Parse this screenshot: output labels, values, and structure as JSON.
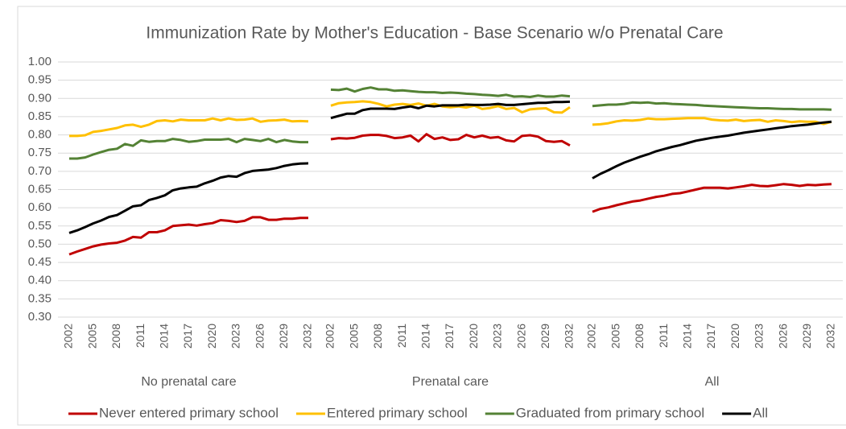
{
  "chart_data": {
    "type": "line",
    "title": "Immunization Rate by Mother's Education - Base Scenario w/o Prenatal Care",
    "panels": [
      "No prenatal care",
      "Prenatal care",
      "All"
    ],
    "categories": [
      2002,
      null,
      null,
      2005,
      null,
      null,
      2008,
      null,
      null,
      2011,
      null,
      null,
      2014,
      null,
      null,
      2017,
      null,
      null,
      2020,
      null,
      null,
      2023,
      null,
      null,
      2026,
      null,
      null,
      2029,
      null,
      null,
      2032
    ],
    "ylim": [
      0.3,
      1.0
    ],
    "yticks": [
      {
        "value": 0.3,
        "label": "0.30"
      },
      {
        "value": 0.35,
        "label": "0.35"
      },
      {
        "value": 0.4,
        "label": "0.40"
      },
      {
        "value": 0.45,
        "label": "0.45"
      },
      {
        "value": 0.5,
        "label": "0.50"
      },
      {
        "value": 0.55,
        "label": "0.55"
      },
      {
        "value": 0.6,
        "label": "0.60"
      },
      {
        "value": 0.65,
        "label": "0.65"
      },
      {
        "value": 0.7,
        "label": "0.70"
      },
      {
        "value": 0.75,
        "label": "0.75"
      },
      {
        "value": 0.8,
        "label": "0.80"
      },
      {
        "value": 0.85,
        "label": "0.85"
      },
      {
        "value": 0.9,
        "label": "0.90"
      },
      {
        "value": 0.95,
        "label": "0.95"
      },
      {
        "value": 1.0,
        "label": "1.00"
      }
    ],
    "grid": true,
    "legend": "bottom",
    "series": [
      {
        "name": "Never entered primary school",
        "color": "#c00000",
        "values": [
          [
            0.472,
            0.48,
            0.487,
            0.494,
            0.499,
            0.502,
            0.504,
            0.51,
            0.52,
            0.518,
            0.533,
            0.533,
            0.538,
            0.55,
            0.552,
            0.554,
            0.551,
            0.555,
            0.558,
            0.566,
            0.564,
            0.561,
            0.564,
            0.574,
            0.574,
            0.567,
            0.567,
            0.57,
            0.57,
            0.572,
            0.572
          ],
          [
            0.788,
            0.791,
            0.79,
            0.792,
            0.798,
            0.8,
            0.8,
            0.797,
            0.791,
            0.793,
            0.798,
            0.782,
            0.802,
            0.789,
            0.793,
            0.786,
            0.788,
            0.8,
            0.793,
            0.798,
            0.792,
            0.794,
            0.785,
            0.782,
            0.797,
            0.799,
            0.795,
            0.783,
            0.781,
            0.783,
            0.771
          ],
          [
            0.589,
            0.597,
            0.601,
            0.607,
            0.612,
            0.617,
            0.62,
            0.625,
            0.63,
            0.633,
            0.638,
            0.64,
            0.645,
            0.65,
            0.655,
            0.655,
            0.655,
            0.653,
            0.656,
            0.659,
            0.663,
            0.66,
            0.659,
            0.662,
            0.665,
            0.663,
            0.66,
            0.663,
            0.662,
            0.664,
            0.665
          ]
        ]
      },
      {
        "name": "Entered primary school",
        "color": "#ffc000",
        "values": [
          [
            0.797,
            0.797,
            0.799,
            0.808,
            0.811,
            0.815,
            0.819,
            0.826,
            0.828,
            0.822,
            0.828,
            0.838,
            0.84,
            0.837,
            0.842,
            0.84,
            0.84,
            0.84,
            0.845,
            0.84,
            0.845,
            0.841,
            0.842,
            0.845,
            0.836,
            0.839,
            0.84,
            0.842,
            0.837,
            0.838,
            0.837
          ],
          [
            0.88,
            0.887,
            0.889,
            0.89,
            0.892,
            0.89,
            0.885,
            0.878,
            0.883,
            0.885,
            0.882,
            0.886,
            0.88,
            0.885,
            0.878,
            0.876,
            0.878,
            0.875,
            0.88,
            0.871,
            0.874,
            0.879,
            0.871,
            0.874,
            0.862,
            0.87,
            0.872,
            0.873,
            0.862,
            0.861,
            0.876
          ],
          [
            0.828,
            0.829,
            0.832,
            0.837,
            0.84,
            0.839,
            0.841,
            0.845,
            0.843,
            0.843,
            0.844,
            0.845,
            0.846,
            0.846,
            0.846,
            0.842,
            0.84,
            0.839,
            0.842,
            0.838,
            0.84,
            0.841,
            0.836,
            0.84,
            0.838,
            0.835,
            0.837,
            0.836,
            0.836,
            0.83,
            0.836
          ]
        ]
      },
      {
        "name": "Graduated from primary school",
        "color": "#548235",
        "values": [
          [
            0.735,
            0.735,
            0.738,
            0.746,
            0.753,
            0.759,
            0.762,
            0.775,
            0.77,
            0.785,
            0.781,
            0.783,
            0.783,
            0.789,
            0.786,
            0.781,
            0.783,
            0.787,
            0.787,
            0.787,
            0.789,
            0.78,
            0.789,
            0.786,
            0.783,
            0.789,
            0.78,
            0.786,
            0.782,
            0.78,
            0.78
          ],
          [
            0.924,
            0.923,
            0.927,
            0.919,
            0.926,
            0.93,
            0.925,
            0.925,
            0.921,
            0.922,
            0.92,
            0.918,
            0.917,
            0.917,
            0.915,
            0.916,
            0.915,
            0.913,
            0.912,
            0.91,
            0.909,
            0.907,
            0.91,
            0.905,
            0.906,
            0.904,
            0.908,
            0.905,
            0.905,
            0.908,
            0.906
          ],
          [
            0.879,
            0.881,
            0.883,
            0.883,
            0.885,
            0.889,
            0.888,
            0.889,
            0.886,
            0.887,
            0.885,
            0.884,
            0.883,
            0.882,
            0.88,
            0.879,
            0.878,
            0.877,
            0.876,
            0.875,
            0.874,
            0.873,
            0.873,
            0.872,
            0.871,
            0.871,
            0.87,
            0.87,
            0.87,
            0.87,
            0.869
          ]
        ]
      },
      {
        "name": "All",
        "color": "#000000",
        "values": [
          [
            0.531,
            0.538,
            0.547,
            0.557,
            0.565,
            0.575,
            0.58,
            0.592,
            0.604,
            0.607,
            0.621,
            0.627,
            0.634,
            0.648,
            0.653,
            0.656,
            0.658,
            0.667,
            0.674,
            0.683,
            0.687,
            0.685,
            0.695,
            0.701,
            0.703,
            0.705,
            0.709,
            0.715,
            0.719,
            0.721,
            0.722
          ],
          [
            0.846,
            0.852,
            0.858,
            0.858,
            0.868,
            0.872,
            0.872,
            0.872,
            0.871,
            0.875,
            0.878,
            0.873,
            0.88,
            0.878,
            0.881,
            0.881,
            0.881,
            0.883,
            0.882,
            0.882,
            0.883,
            0.885,
            0.882,
            0.882,
            0.884,
            0.886,
            0.888,
            0.888,
            0.89,
            0.89,
            0.891
          ],
          [
            0.681,
            0.693,
            0.703,
            0.714,
            0.724,
            0.732,
            0.74,
            0.747,
            0.755,
            0.761,
            0.767,
            0.772,
            0.778,
            0.784,
            0.788,
            0.792,
            0.795,
            0.798,
            0.802,
            0.806,
            0.809,
            0.812,
            0.815,
            0.818,
            0.821,
            0.824,
            0.826,
            0.828,
            0.831,
            0.834,
            0.836
          ]
        ]
      }
    ]
  }
}
